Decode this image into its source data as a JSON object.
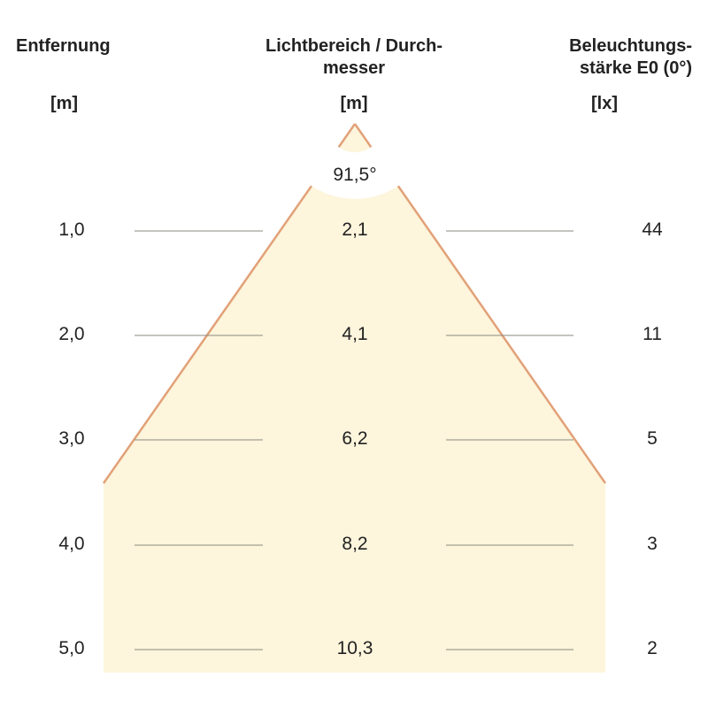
{
  "headers": {
    "distance": {
      "title": "Entfernung",
      "unit": "[m]"
    },
    "diameter": {
      "title_line1": "Lichtbereich / Durch-",
      "title_line2": "messer",
      "unit": "[m]"
    },
    "illuminance": {
      "title_line1": "Beleuchtungs-",
      "title_line2": "stärke E0 (0°)",
      "unit": "[lx]"
    }
  },
  "beam_angle": "91,5°",
  "rows": [
    {
      "distance": "1,0",
      "diameter": "2,1",
      "illuminance": "44"
    },
    {
      "distance": "2,0",
      "diameter": "4,1",
      "illuminance": "11"
    },
    {
      "distance": "3,0",
      "diameter": "6,2",
      "illuminance": "5"
    },
    {
      "distance": "4,0",
      "diameter": "8,2",
      "illuminance": "3"
    },
    {
      "distance": "5,0",
      "diameter": "10,3",
      "illuminance": "2"
    }
  ],
  "colors": {
    "cone_fill": "#fdf5dc",
    "cone_edge": "#e2a178",
    "guide_line": "#8a8a80"
  }
}
